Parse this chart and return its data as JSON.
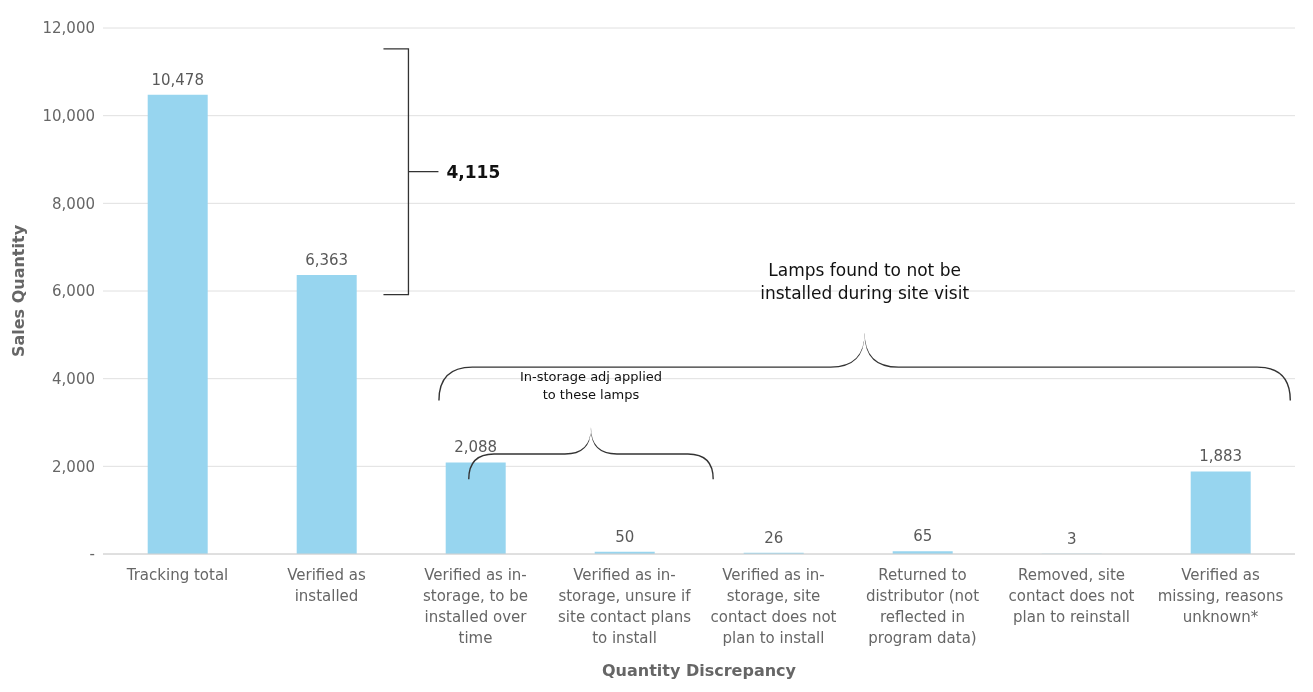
{
  "chart_data": {
    "type": "bar",
    "xlabel": "Quantity Discrepancy",
    "ylabel": "Sales Quantity",
    "categories": [
      "Tracking total",
      "Verified as installed",
      "Verified as in-storage, to be installed over time",
      "Verified as in-storage, unsure if site contact plans to install",
      "Verified as in-storage, site contact does not plan to install",
      "Returned to distributor (not reflected in program data)",
      "Removed, site contact does not plan to reinstall",
      "Verified as missing, reasons unknown*"
    ],
    "values": [
      10478,
      6363,
      2088,
      50,
      26,
      65,
      3,
      1883
    ],
    "color": "#97d5ef",
    "ylim": [
      0,
      12000
    ],
    "yticks": [
      {
        "value": 0,
        "label": "-"
      },
      {
        "value": 2000,
        "label": "2,000"
      },
      {
        "value": 4000,
        "label": "4,000"
      },
      {
        "value": 6000,
        "label": "6,000"
      },
      {
        "value": 8000,
        "label": "8,000"
      },
      {
        "value": 10000,
        "label": "10,000"
      },
      {
        "value": 12000,
        "label": "12,000"
      }
    ],
    "grid": "y",
    "value_labels": [
      "10,478",
      "6,363",
      "2,088",
      "50",
      "26",
      "65",
      "3",
      "1,883"
    ],
    "annotations": [
      "4,115",
      "Lamps found to not be installed during site visit",
      "In-storage adj applied to these lamps"
    ]
  }
}
